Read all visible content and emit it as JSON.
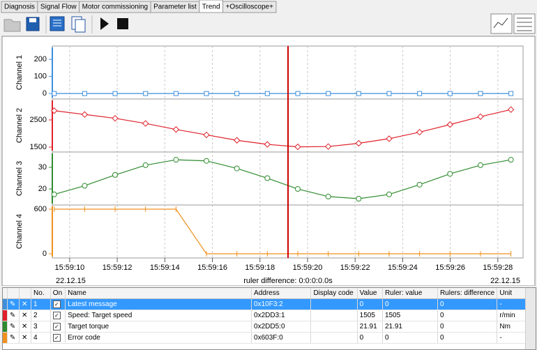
{
  "tabs": [
    {
      "label": "Diagnosis"
    },
    {
      "label": "Signal Flow"
    },
    {
      "label": "Motor commissioning"
    },
    {
      "label": "Parameter list"
    },
    {
      "label": "Trend",
      "active": true
    },
    {
      "label": "+Oscilloscope+"
    }
  ],
  "time_axis": {
    "xlim": [
      9.27,
      29.06
    ],
    "xticks": [
      {
        "value": 10,
        "label": "15:59:10"
      },
      {
        "value": 12,
        "label": "15:59:12"
      },
      {
        "value": 14,
        "label": "15:59:14"
      },
      {
        "value": 16,
        "label": "15:59:16"
      },
      {
        "value": 18,
        "label": "15:59:18"
      },
      {
        "value": 20,
        "label": "15:59:20"
      },
      {
        "value": 22,
        "label": "15:59:22"
      },
      {
        "value": 24,
        "label": "15:59:24"
      },
      {
        "value": 26,
        "label": "15:59:26"
      },
      {
        "value": 28,
        "label": "15:59:28"
      }
    ],
    "date_left": "22.12.15",
    "date_right": "22.12.15",
    "ruler_x": 19.18,
    "ruler_color": "#cc0000",
    "ruler_label": "ruler difference: 0:0:0:0.0s",
    "grid": true
  },
  "chart_data": [
    {
      "type": "line",
      "ylabel": "Channel 1",
      "color": "#3d8fdc",
      "marker": "square",
      "x": [
        9.35,
        10.63,
        11.91,
        13.19,
        14.47,
        15.75,
        17.03,
        18.31,
        19.59,
        20.87,
        22.15,
        23.43,
        24.71,
        25.99,
        27.27,
        28.55
      ],
      "values": [
        0,
        0,
        0,
        0,
        0,
        0,
        0,
        0,
        0,
        0,
        0,
        0,
        0,
        0,
        0,
        0
      ],
      "ylim": [
        -32,
        278
      ],
      "yticks": [
        0,
        100,
        200
      ]
    },
    {
      "type": "line",
      "ylabel": "Channel 2",
      "color": "#e0202a",
      "marker": "diamond",
      "x": [
        9.35,
        10.63,
        11.91,
        13.19,
        14.47,
        15.75,
        17.03,
        18.31,
        19.59,
        20.87,
        22.15,
        23.43,
        24.71,
        25.99,
        27.27,
        28.55
      ],
      "values": [
        2840,
        2700,
        2560,
        2370,
        2150,
        1950,
        1750,
        1600,
        1510,
        1520,
        1640,
        1810,
        2050,
        2330,
        2620,
        2880
      ],
      "ylim": [
        1320,
        3270
      ],
      "yticks": [
        1500,
        2500
      ]
    },
    {
      "type": "line",
      "ylabel": "Channel 3",
      "color": "#2e8b2e",
      "marker": "circle",
      "x": [
        9.35,
        10.63,
        11.91,
        13.19,
        14.47,
        15.75,
        17.03,
        18.31,
        19.59,
        20.87,
        22.15,
        23.43,
        24.71,
        25.99,
        27.27,
        28.55
      ],
      "values": [
        17.5,
        21.5,
        26.5,
        31,
        33.5,
        33,
        29.5,
        25,
        20,
        16.5,
        15.5,
        17.5,
        22,
        27,
        31,
        33.5
      ],
      "ylim": [
        12.6,
        37.1
      ],
      "yticks": [
        20,
        30
      ]
    },
    {
      "type": "line",
      "ylabel": "Channel 4",
      "color": "#f0901e",
      "marker": "tick",
      "x": [
        9.35,
        10.63,
        11.91,
        13.19,
        14.47,
        15.75,
        17.03,
        18.31,
        19.59,
        20.87,
        22.15,
        23.43,
        24.71,
        25.99,
        27.27,
        28.55
      ],
      "values": [
        600,
        600,
        600,
        600,
        600,
        0,
        0,
        0,
        0,
        0,
        0,
        0,
        0,
        0,
        0,
        0
      ],
      "ylim": [
        -56,
        656
      ],
      "yticks": [
        0,
        600
      ]
    }
  ],
  "table": {
    "headers": [
      "No.",
      "On",
      "Name",
      "Address",
      "Display code",
      "Value",
      "Ruler: value",
      "Rulers: difference",
      "Unit"
    ],
    "rows": [
      {
        "color": "#3d8fdc",
        "no": "1",
        "name": "Latest message",
        "address": "0x10F3:2",
        "value": "0",
        "ruler_value": "0",
        "ruler_difference": "0",
        "unit": "-",
        "selected": true
      },
      {
        "color": "#e0202a",
        "no": "2",
        "name": "Speed: Target speed",
        "address": "0x2DD3:1",
        "value": "1505",
        "ruler_value": "1505",
        "ruler_difference": "0",
        "unit": "r/min"
      },
      {
        "color": "#2e8b2e",
        "no": "3",
        "name": "Target torque",
        "address": "0x2DD5:0",
        "value": "21.91",
        "ruler_value": "21.91",
        "ruler_difference": "0",
        "unit": "Nm"
      },
      {
        "color": "#f0901e",
        "no": "4",
        "name": "Error code",
        "address": "0x603F:0",
        "value": "0",
        "ruler_value": "0",
        "ruler_difference": "0",
        "unit": "-"
      }
    ]
  }
}
